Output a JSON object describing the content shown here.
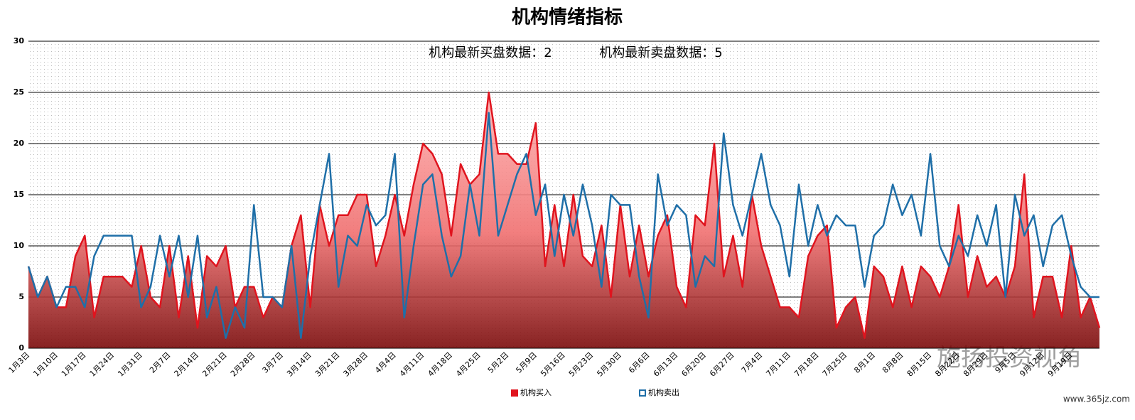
{
  "chart_data": {
    "type": "line",
    "title": "机构情绪指标",
    "annotations": [
      "机构最新买盘数据：2",
      "机构最新卖盘数据：5"
    ],
    "watermark": [
      "施扬投资视角",
      "www.365jz.com"
    ],
    "categories": [
      "1月3日",
      null,
      null,
      "1月10日",
      null,
      null,
      "1月17日",
      null,
      null,
      "1月24日",
      null,
      null,
      "1月31日",
      null,
      null,
      "2月7日",
      null,
      null,
      "2月14日",
      null,
      null,
      "2月21日",
      null,
      null,
      "2月28日",
      null,
      null,
      "3月7日",
      null,
      null,
      "3月14日",
      null,
      null,
      "3月21日",
      null,
      null,
      "3月28日",
      null,
      null,
      "4月4日",
      null,
      null,
      "4月11日",
      null,
      null,
      "4月18日",
      null,
      null,
      "4月25日",
      null,
      null,
      "5月2日",
      null,
      null,
      "5月9日",
      null,
      null,
      "5月16日",
      null,
      null,
      "5月23日",
      null,
      null,
      "5月30日",
      null,
      null,
      "6月6日",
      null,
      null,
      "6月13日",
      null,
      null,
      "6月20日",
      null,
      null,
      "6月27日",
      null,
      null,
      "7月4日",
      null,
      null,
      "7月11日",
      null,
      null,
      "7月18日",
      null,
      null,
      "7月25日",
      null,
      null,
      "8月1日",
      null,
      null,
      "8月8日",
      null,
      null,
      "8月15日",
      null,
      null,
      "8月22日",
      null,
      null,
      "8月29日",
      null,
      null,
      "9月5日",
      null,
      null,
      "9月12日",
      null,
      null,
      "9月19日",
      null,
      null,
      null
    ],
    "series": [
      {
        "name": "机构买入",
        "color": "#e0141e",
        "area": true,
        "values": [
          8,
          5,
          7,
          4,
          4,
          9,
          11,
          3,
          7,
          7,
          7,
          6,
          10,
          5,
          4,
          10,
          3,
          9,
          2,
          9,
          8,
          10,
          4,
          6,
          6,
          3,
          5,
          4,
          10,
          13,
          4,
          14,
          10,
          13,
          13,
          15,
          15,
          8,
          11,
          15,
          11,
          16,
          20,
          19,
          17,
          11,
          18,
          16,
          17,
          25,
          19,
          19,
          18,
          18,
          22,
          8,
          14,
          8,
          15,
          9,
          8,
          12,
          5,
          14,
          7,
          12,
          7,
          11,
          13,
          6,
          4,
          13,
          12,
          20,
          7,
          11,
          6,
          15,
          10,
          7,
          4,
          4,
          3,
          9,
          11,
          12,
          2,
          4,
          5,
          1,
          8,
          7,
          4,
          8,
          4,
          8,
          7,
          5,
          8,
          14,
          5,
          9,
          6,
          7,
          5,
          8,
          17,
          3,
          7,
          7,
          3,
          10,
          3,
          5,
          2
        ]
      },
      {
        "name": "机构卖出",
        "color": "#1f6fa8",
        "area": false,
        "values": [
          8,
          5,
          7,
          4,
          6,
          6,
          4,
          9,
          11,
          11,
          11,
          11,
          4,
          6,
          11,
          7,
          11,
          5,
          11,
          3,
          6,
          1,
          4,
          2,
          14,
          5,
          5,
          4,
          10,
          1,
          9,
          14,
          19,
          6,
          11,
          10,
          14,
          12,
          13,
          19,
          3,
          10,
          16,
          17,
          11,
          7,
          9,
          16,
          11,
          23,
          11,
          14,
          17,
          19,
          13,
          16,
          9,
          15,
          11,
          16,
          12,
          6,
          15,
          14,
          14,
          7,
          3,
          17,
          12,
          14,
          13,
          6,
          9,
          8,
          21,
          14,
          11,
          15,
          19,
          14,
          12,
          7,
          16,
          10,
          14,
          11,
          13,
          12,
          12,
          6,
          11,
          12,
          16,
          13,
          15,
          11,
          19,
          10,
          8,
          11,
          9,
          13,
          10,
          14,
          5,
          15,
          11,
          13,
          8,
          12,
          13,
          9,
          6,
          5,
          5
        ]
      }
    ],
    "ylim": [
      0,
      30
    ],
    "yticks": [
      0,
      5,
      10,
      15,
      20,
      25,
      30
    ],
    "grid": true,
    "legend": "bottom"
  }
}
